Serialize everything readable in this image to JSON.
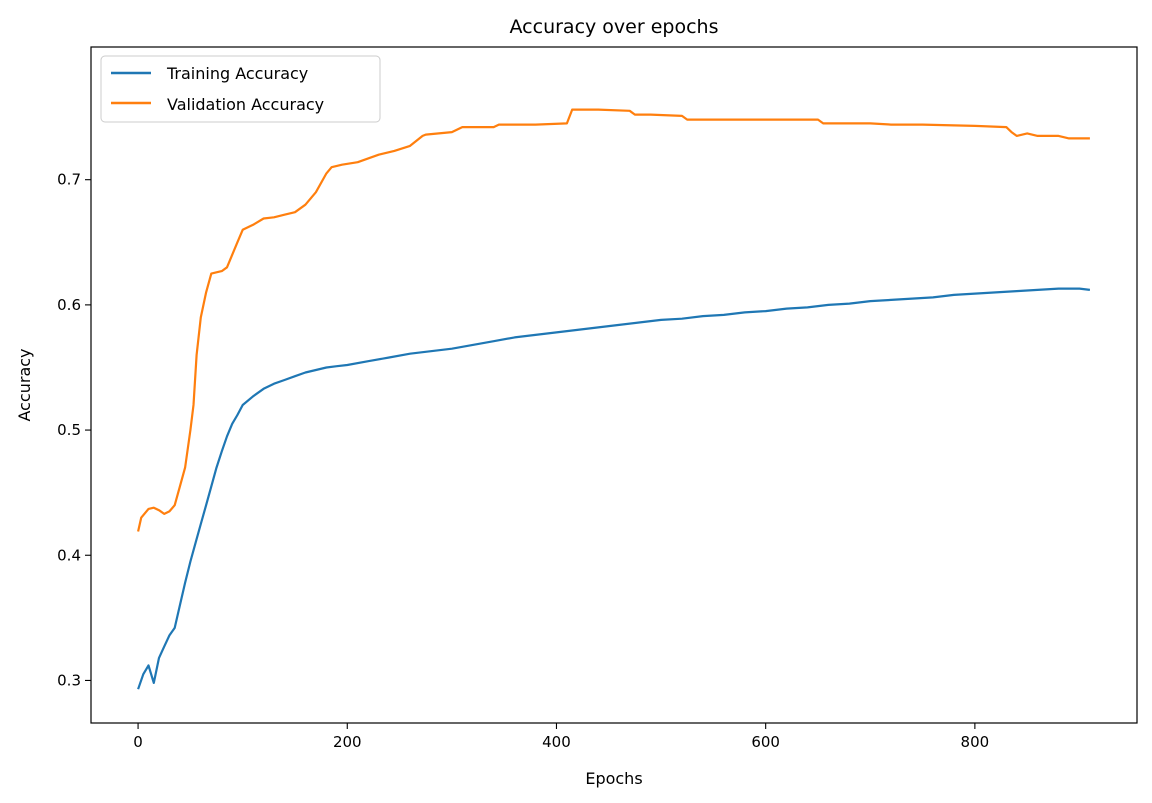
{
  "chart_data": {
    "type": "line",
    "title": "Accuracy over epochs",
    "xlabel": "Epochs",
    "ylabel": "Accuracy",
    "xlim": [
      -45,
      955
    ],
    "ylim": [
      0.266,
      0.806
    ],
    "xticks": [
      0,
      200,
      400,
      600,
      800
    ],
    "yticks": [
      0.3,
      0.4,
      0.5,
      0.6,
      0.7
    ],
    "ytick_labels": [
      "0.3",
      "0.4",
      "0.5",
      "0.6",
      "0.7"
    ],
    "xtick_labels": [
      "0",
      "200",
      "400",
      "600",
      "800"
    ],
    "grid": false,
    "legend_position": "upper-left",
    "series": [
      {
        "name": "Training Accuracy",
        "color": "#1f77b4",
        "x": [
          0,
          5,
          10,
          15,
          20,
          25,
          30,
          35,
          40,
          45,
          50,
          55,
          60,
          65,
          70,
          75,
          80,
          85,
          90,
          95,
          100,
          110,
          120,
          130,
          140,
          150,
          160,
          170,
          180,
          190,
          200,
          220,
          240,
          260,
          280,
          300,
          320,
          340,
          360,
          380,
          400,
          420,
          440,
          460,
          480,
          500,
          520,
          540,
          560,
          580,
          600,
          620,
          640,
          660,
          680,
          700,
          720,
          740,
          760,
          780,
          800,
          820,
          840,
          860,
          880,
          900,
          910
        ],
        "y": [
          0.293,
          0.305,
          0.312,
          0.298,
          0.318,
          0.327,
          0.336,
          0.342,
          0.36,
          0.378,
          0.395,
          0.41,
          0.425,
          0.44,
          0.455,
          0.47,
          0.483,
          0.495,
          0.505,
          0.512,
          0.52,
          0.527,
          0.533,
          0.537,
          0.54,
          0.543,
          0.546,
          0.548,
          0.55,
          0.551,
          0.552,
          0.555,
          0.558,
          0.561,
          0.563,
          0.565,
          0.568,
          0.571,
          0.574,
          0.576,
          0.578,
          0.58,
          0.582,
          0.584,
          0.586,
          0.588,
          0.589,
          0.591,
          0.592,
          0.594,
          0.595,
          0.597,
          0.598,
          0.6,
          0.601,
          0.603,
          0.604,
          0.605,
          0.606,
          0.608,
          0.609,
          0.61,
          0.611,
          0.612,
          0.613,
          0.613,
          0.612
        ]
      },
      {
        "name": "Validation Accuracy",
        "color": "#ff7f0e",
        "x": [
          0,
          3,
          10,
          15,
          20,
          25,
          30,
          35,
          40,
          45,
          50,
          53,
          56,
          60,
          65,
          70,
          75,
          80,
          85,
          90,
          95,
          100,
          110,
          120,
          130,
          140,
          150,
          160,
          170,
          180,
          185,
          195,
          210,
          230,
          245,
          260,
          272,
          275,
          300,
          310,
          340,
          345,
          350,
          380,
          410,
          415,
          440,
          470,
          475,
          490,
          520,
          525,
          550,
          600,
          650,
          655,
          700,
          720,
          750,
          800,
          830,
          835,
          840,
          850,
          860,
          870,
          880,
          890,
          900,
          910
        ],
        "y": [
          0.419,
          0.43,
          0.437,
          0.438,
          0.436,
          0.433,
          0.435,
          0.44,
          0.455,
          0.47,
          0.5,
          0.52,
          0.56,
          0.59,
          0.61,
          0.625,
          0.626,
          0.627,
          0.63,
          0.64,
          0.65,
          0.66,
          0.664,
          0.669,
          0.67,
          0.672,
          0.674,
          0.68,
          0.69,
          0.705,
          0.71,
          0.712,
          0.714,
          0.72,
          0.723,
          0.727,
          0.735,
          0.736,
          0.738,
          0.742,
          0.742,
          0.744,
          0.744,
          0.744,
          0.745,
          0.756,
          0.756,
          0.755,
          0.752,
          0.752,
          0.751,
          0.748,
          0.748,
          0.748,
          0.748,
          0.745,
          0.745,
          0.744,
          0.744,
          0.743,
          0.742,
          0.738,
          0.735,
          0.737,
          0.735,
          0.735,
          0.735,
          0.733,
          0.733,
          0.733
        ]
      }
    ]
  }
}
